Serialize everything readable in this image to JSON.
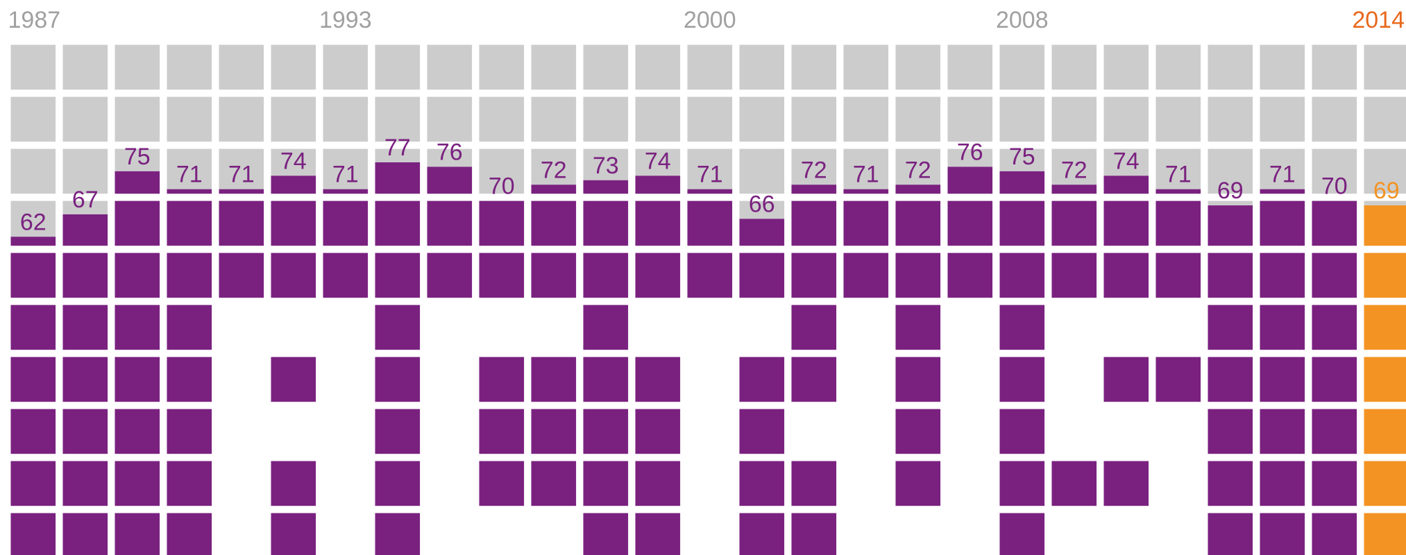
{
  "chart_data": {
    "type": "waffle-bar",
    "categories": [
      "1987",
      null,
      null,
      null,
      null,
      null,
      "1993",
      null,
      null,
      null,
      null,
      null,
      null,
      "2000",
      null,
      null,
      null,
      null,
      null,
      "2008",
      null,
      null,
      null,
      null,
      null,
      null,
      "2014"
    ],
    "values": [
      62,
      67,
      75,
      71,
      71,
      74,
      71,
      77,
      76,
      70,
      72,
      73,
      74,
      71,
      66,
      72,
      71,
      72,
      76,
      75,
      72,
      74,
      71,
      69,
      71,
      70,
      69
    ],
    "color": "#7a2180",
    "colors": [
      "#7a2180",
      "#7a2180",
      "#7a2180",
      "#7a2180",
      "#7a2180",
      "#7a2180",
      "#7a2180",
      "#7a2180",
      "#7a2180",
      "#7a2180",
      "#7a2180",
      "#7a2180",
      "#7a2180",
      "#7a2180",
      "#7a2180",
      "#7a2180",
      "#7a2180",
      "#7a2180",
      "#7a2180",
      "#7a2180",
      "#7a2180",
      "#7a2180",
      "#7a2180",
      "#7a2180",
      "#7a2180",
      "#7a2180",
      "#f39323"
    ],
    "ylim": [
      0,
      100
    ]
  }
}
